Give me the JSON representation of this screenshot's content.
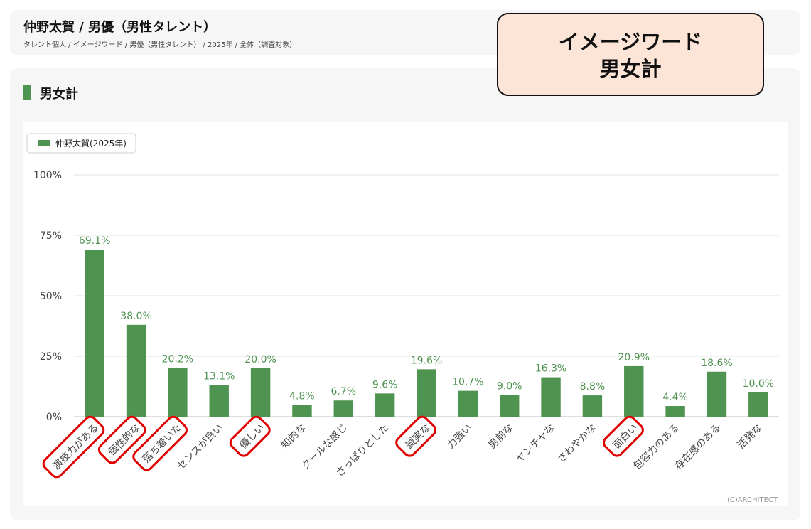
{
  "header": {
    "title": "仲野太賀 / 男優（男性タレント）",
    "breadcrumb": "タレント個人 / イメージワード / 男優（男性タレント） / 2025年 / 全体（調査対象）"
  },
  "section": {
    "title": "男女計"
  },
  "overlay": {
    "line1": "イメージワード",
    "line2": "男女計"
  },
  "colors": {
    "bar": "#4f9350",
    "label": "#4f9350",
    "highlight": "#e00000",
    "grid": "#e3e3e3"
  },
  "chart_data": {
    "type": "bar",
    "categories": [
      "演技力がある",
      "個性的な",
      "落ち着いた",
      "センスが良い",
      "優しい",
      "知的な",
      "クールな感じ",
      "さっぱりとした",
      "誠実な",
      "力強い",
      "男前な",
      "ヤンチャな",
      "さわやかな",
      "面白い",
      "包容力のある",
      "存在感のある",
      "活発な"
    ],
    "series": [
      {
        "name": "仲野太賀(2025年)",
        "values": [
          69.1,
          38.0,
          20.2,
          13.1,
          20.0,
          4.8,
          6.7,
          9.6,
          19.6,
          10.7,
          9.0,
          16.3,
          8.8,
          20.9,
          4.4,
          18.6,
          10.0
        ]
      }
    ],
    "value_labels": [
      "69.1%",
      "38.0%",
      "20.2%",
      "13.1%",
      "20.0%",
      "4.8%",
      "6.7%",
      "9.6%",
      "19.6%",
      "10.7%",
      "9.0%",
      "16.3%",
      "8.8%",
      "20.9%",
      "4.4%",
      "18.6%",
      "10.0%"
    ],
    "y_ticks": [
      "0%",
      "25%",
      "50%",
      "75%",
      "100%"
    ],
    "ylim": [
      0,
      100
    ],
    "grid": true,
    "legend_position": "top-left",
    "highlighted_categories": [
      "演技力がある",
      "個性的な",
      "落ち着いた",
      "優しい",
      "誠実な",
      "面白い"
    ],
    "credit": "(C)ARCHITECT"
  }
}
